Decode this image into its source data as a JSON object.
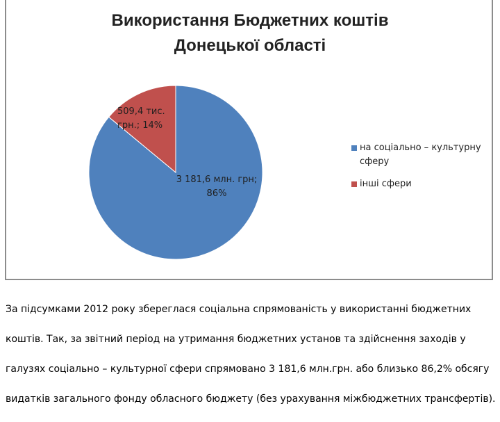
{
  "chart_data": {
    "type": "pie",
    "title_lines": [
      "Використання Бюджетних коштів",
      "Донецької області"
    ],
    "slices": [
      {
        "name": "на соціально – культурну сферу",
        "value": 86,
        "label_lines": [
          "3 181,6 млн. грн;",
          "86%"
        ],
        "color": "#4f81bd"
      },
      {
        "name": "інші сфери",
        "value": 14,
        "label_lines": [
          "509,4 тис.",
          "грн.; 14%"
        ],
        "color": "#c0504d"
      }
    ],
    "legend_position": "right"
  },
  "legend": {
    "items": [
      {
        "lines": [
          "на соціально – культурну",
          "сферу"
        ]
      },
      {
        "lines": [
          "інші сфери"
        ]
      }
    ]
  },
  "caption": {
    "lines": [
      "За підсумками 2012 року збереглася соціальна спрямованість у використанні бюджетних",
      "коштів. Так, за звітний період на утримання бюджетних установ та здійснення заходів у",
      "галузях соціально – культурної сфери спрямовано 3 181,6 млн.грн. або близько 86,2% обсягу",
      "видатків загального фонду обласного бюджету (без урахування міжбюджетних трансфертів)."
    ]
  }
}
